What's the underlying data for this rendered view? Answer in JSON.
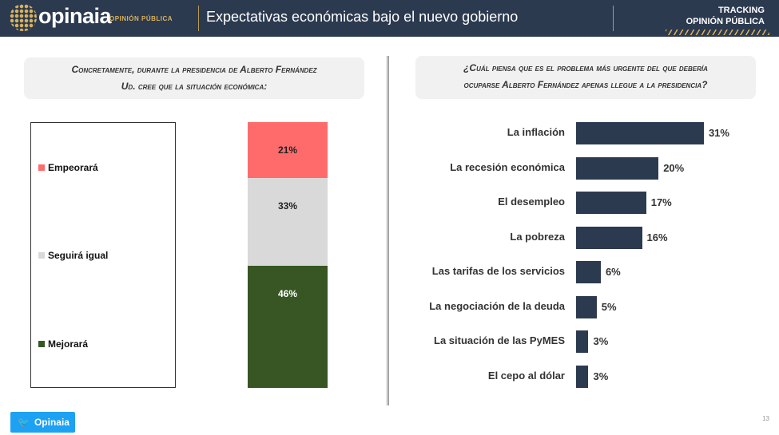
{
  "header": {
    "brand": "opinaia",
    "brand_sub": "OPINIÓN PÚBLICA",
    "title": "Expectativas económicas bajo el nuevo gobierno",
    "tracking_line1": "TRACKING",
    "tracking_line2": "OPINIÓN PÚBLICA"
  },
  "colors": {
    "header": "#2c3a50",
    "gold": "#d8b25a",
    "empeorara": "#ff6b6b",
    "seguira": "#d9d9d9",
    "mejorara": "#375623",
    "bars": "#2c3a50"
  },
  "footer": {
    "twitter_label": "Opinaia",
    "page": "13",
    "twitter_icon": "twitter-bird-icon"
  },
  "chart_data": [
    {
      "type": "bar",
      "stacked": true,
      "question_line1": "Concretamente, durante la presidencia de Alberto Fernández",
      "question_line2": "Ud. cree que la situación económica:",
      "series": [
        {
          "name": "Empeorará",
          "value": 21,
          "label": "21%"
        },
        {
          "name": "Seguirá igual",
          "value": 33,
          "label": "33%"
        },
        {
          "name": "Mejorará",
          "value": 46,
          "label": "46%"
        }
      ]
    },
    {
      "type": "bar",
      "orientation": "horizontal",
      "question_line1": "¿Cuál piensa que es el problema más urgente del que debería",
      "question_line2": "ocuparse Alberto Fernández apenas llegue a la presidencia?",
      "categories": [
        "La inflación",
        "La recesión económica",
        "El desempleo",
        "La pobreza",
        "Las tarifas de los servicios",
        "La negociación de la deuda",
        "La situación de las PyMES",
        "El cepo al dólar"
      ],
      "values": [
        31,
        20,
        17,
        16,
        6,
        5,
        3,
        3
      ],
      "labels": [
        "31%",
        "20%",
        "17%",
        "16%",
        "6%",
        "5%",
        "3%",
        "3%"
      ]
    }
  ]
}
